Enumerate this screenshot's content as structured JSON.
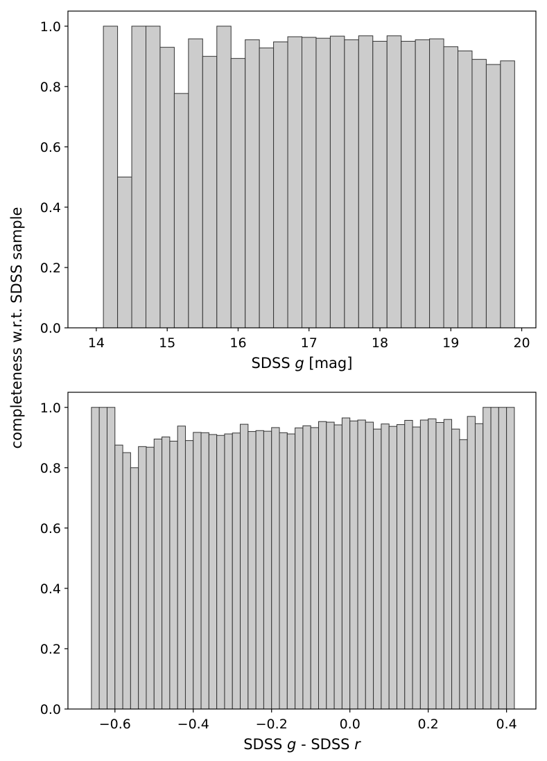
{
  "figure": {
    "shared_ylabel": "completeness w.r.t. SDSS sample"
  },
  "chart_data": [
    {
      "type": "bar",
      "title": "",
      "xlabel": "SDSS g [mag]",
      "xlabel_parts": [
        "SDSS ",
        "g",
        " [mag]"
      ],
      "ylabel": "completeness w.r.t. SDSS sample",
      "xlim": [
        13.6,
        20.2
      ],
      "ylim": [
        0.0,
        1.05
      ],
      "xticks": [
        14,
        15,
        16,
        17,
        18,
        19,
        20
      ],
      "xtick_labels": [
        "14",
        "15",
        "16",
        "17",
        "18",
        "19",
        "20"
      ],
      "yticks": [
        0.0,
        0.2,
        0.4,
        0.6,
        0.8,
        1.0
      ],
      "ytick_labels": [
        "0.0",
        "0.2",
        "0.4",
        "0.6",
        "0.8",
        "1.0"
      ],
      "grid": false,
      "bar_color": "#cccccc",
      "edge_color": "#333333",
      "bin_start": 14.1,
      "bin_width": 0.2,
      "values": [
        1.0,
        0.5,
        1.0,
        1.0,
        0.93,
        0.777,
        0.958,
        0.9,
        1.0,
        0.893,
        0.955,
        0.928,
        0.948,
        0.965,
        0.963,
        0.96,
        0.967,
        0.955,
        0.968,
        0.95,
        0.968,
        0.95,
        0.955,
        0.958,
        0.932,
        0.918,
        0.89,
        0.873,
        0.885
      ]
    },
    {
      "type": "bar",
      "title": "",
      "xlabel": "SDSS g - SDSS r",
      "xlabel_parts": [
        "SDSS ",
        "g",
        " - SDSS ",
        "r"
      ],
      "ylabel": "completeness w.r.t. SDSS sample",
      "xlim": [
        -0.72,
        0.475
      ],
      "ylim": [
        0.0,
        1.05
      ],
      "xticks": [
        -0.6,
        -0.4,
        -0.2,
        0.0,
        0.2,
        0.4
      ],
      "xtick_labels": [
        "−0.6",
        "−0.4",
        "−0.2",
        "0.0",
        "0.2",
        "0.4"
      ],
      "yticks": [
        0.0,
        0.2,
        0.4,
        0.6,
        0.8,
        1.0
      ],
      "ytick_labels": [
        "0.0",
        "0.2",
        "0.4",
        "0.6",
        "0.8",
        "1.0"
      ],
      "grid": false,
      "bar_color": "#cccccc",
      "edge_color": "#333333",
      "bin_start": -0.66,
      "bin_width": 0.02,
      "values": [
        1.0,
        1.0,
        1.0,
        0.875,
        0.85,
        0.8,
        0.87,
        0.868,
        0.895,
        0.902,
        0.888,
        0.938,
        0.89,
        0.917,
        0.916,
        0.91,
        0.907,
        0.912,
        0.915,
        0.944,
        0.92,
        0.923,
        0.921,
        0.933,
        0.916,
        0.912,
        0.932,
        0.939,
        0.933,
        0.953,
        0.951,
        0.942,
        0.965,
        0.955,
        0.958,
        0.951,
        0.928,
        0.945,
        0.937,
        0.943,
        0.957,
        0.935,
        0.958,
        0.962,
        0.95,
        0.96,
        0.928,
        0.893,
        0.97,
        0.946,
        1.0,
        1.0,
        1.0,
        1.0
      ]
    }
  ]
}
